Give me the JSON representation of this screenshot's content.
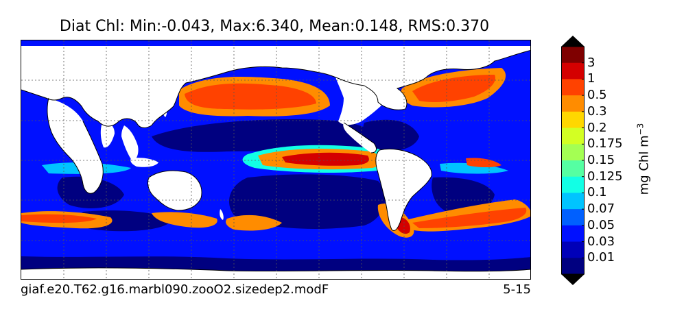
{
  "title": "Diat Chl: Min:-0.043, Max:6.340, Mean:0.148, RMS:0.370",
  "caption_left": "giaf.e20.T62.g16.marbl090.zooO2.sizedep2.modF",
  "caption_right": "5-15",
  "colorbar": {
    "units_main": "mg Chl m",
    "units_exp": "−3",
    "labels": [
      "3",
      "1",
      "0.5",
      "0.3",
      "0.2",
      "0.175",
      "0.15",
      "0.125",
      "0.1",
      "0.07",
      "0.05",
      "0.03",
      "0.01"
    ],
    "colors_top_to_bottom": [
      "#7f0000",
      "#d40000",
      "#ff4200",
      "#ff8c00",
      "#ffd700",
      "#d3ff23",
      "#a4ff53",
      "#55ffa2",
      "#12ffe5",
      "#00c4ff",
      "#0060ff",
      "#0010ff",
      "#0000b8",
      "#000080"
    ],
    "over_color": "#000000",
    "under_color": "#000000"
  },
  "map": {
    "ocean_background": "#0010ff",
    "land_color": "#ffffff",
    "gridlines": "dotted"
  }
}
